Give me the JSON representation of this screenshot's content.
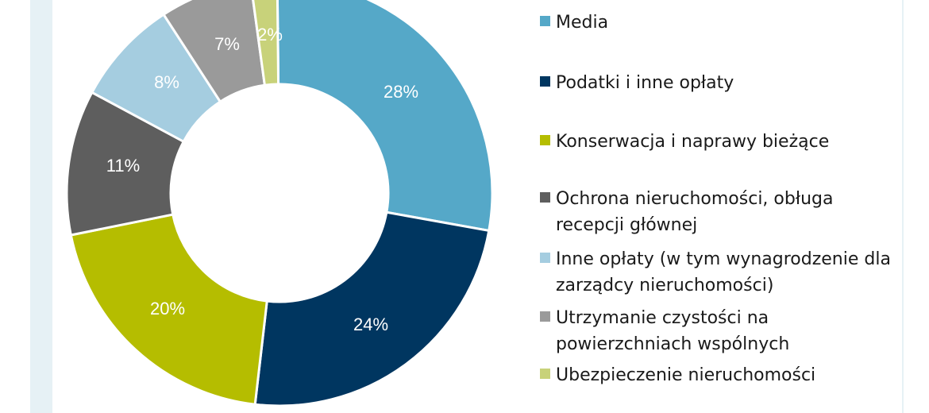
{
  "chart_data": {
    "type": "pie",
    "title": "",
    "series": [
      {
        "values": [
          28,
          24,
          20,
          11,
          8,
          7,
          2
        ]
      }
    ],
    "categories": [
      "Media",
      "Podatki i inne opłaty",
      "Konserwacja i naprawy bieżące",
      "Ochrona nieruchomości, obługa recepcji głównej",
      "Inne opłaty (w tym wynagrodzenie dla zarządcy nieruchomości)",
      "Utrzymanie czystości na powierzchniach wspólnych",
      "Ubezpieczenie nieruchomości"
    ],
    "data_labels": [
      "28%",
      "24%",
      "20%",
      "11%",
      "8%",
      "7%",
      "2%"
    ],
    "colors": [
      "#55a8c8",
      "#003660",
      "#b5bd00",
      "#5e5e5e",
      "#a5cde0",
      "#9a9a9a",
      "#c8d27a"
    ],
    "donut": true,
    "legend_position": "right"
  }
}
